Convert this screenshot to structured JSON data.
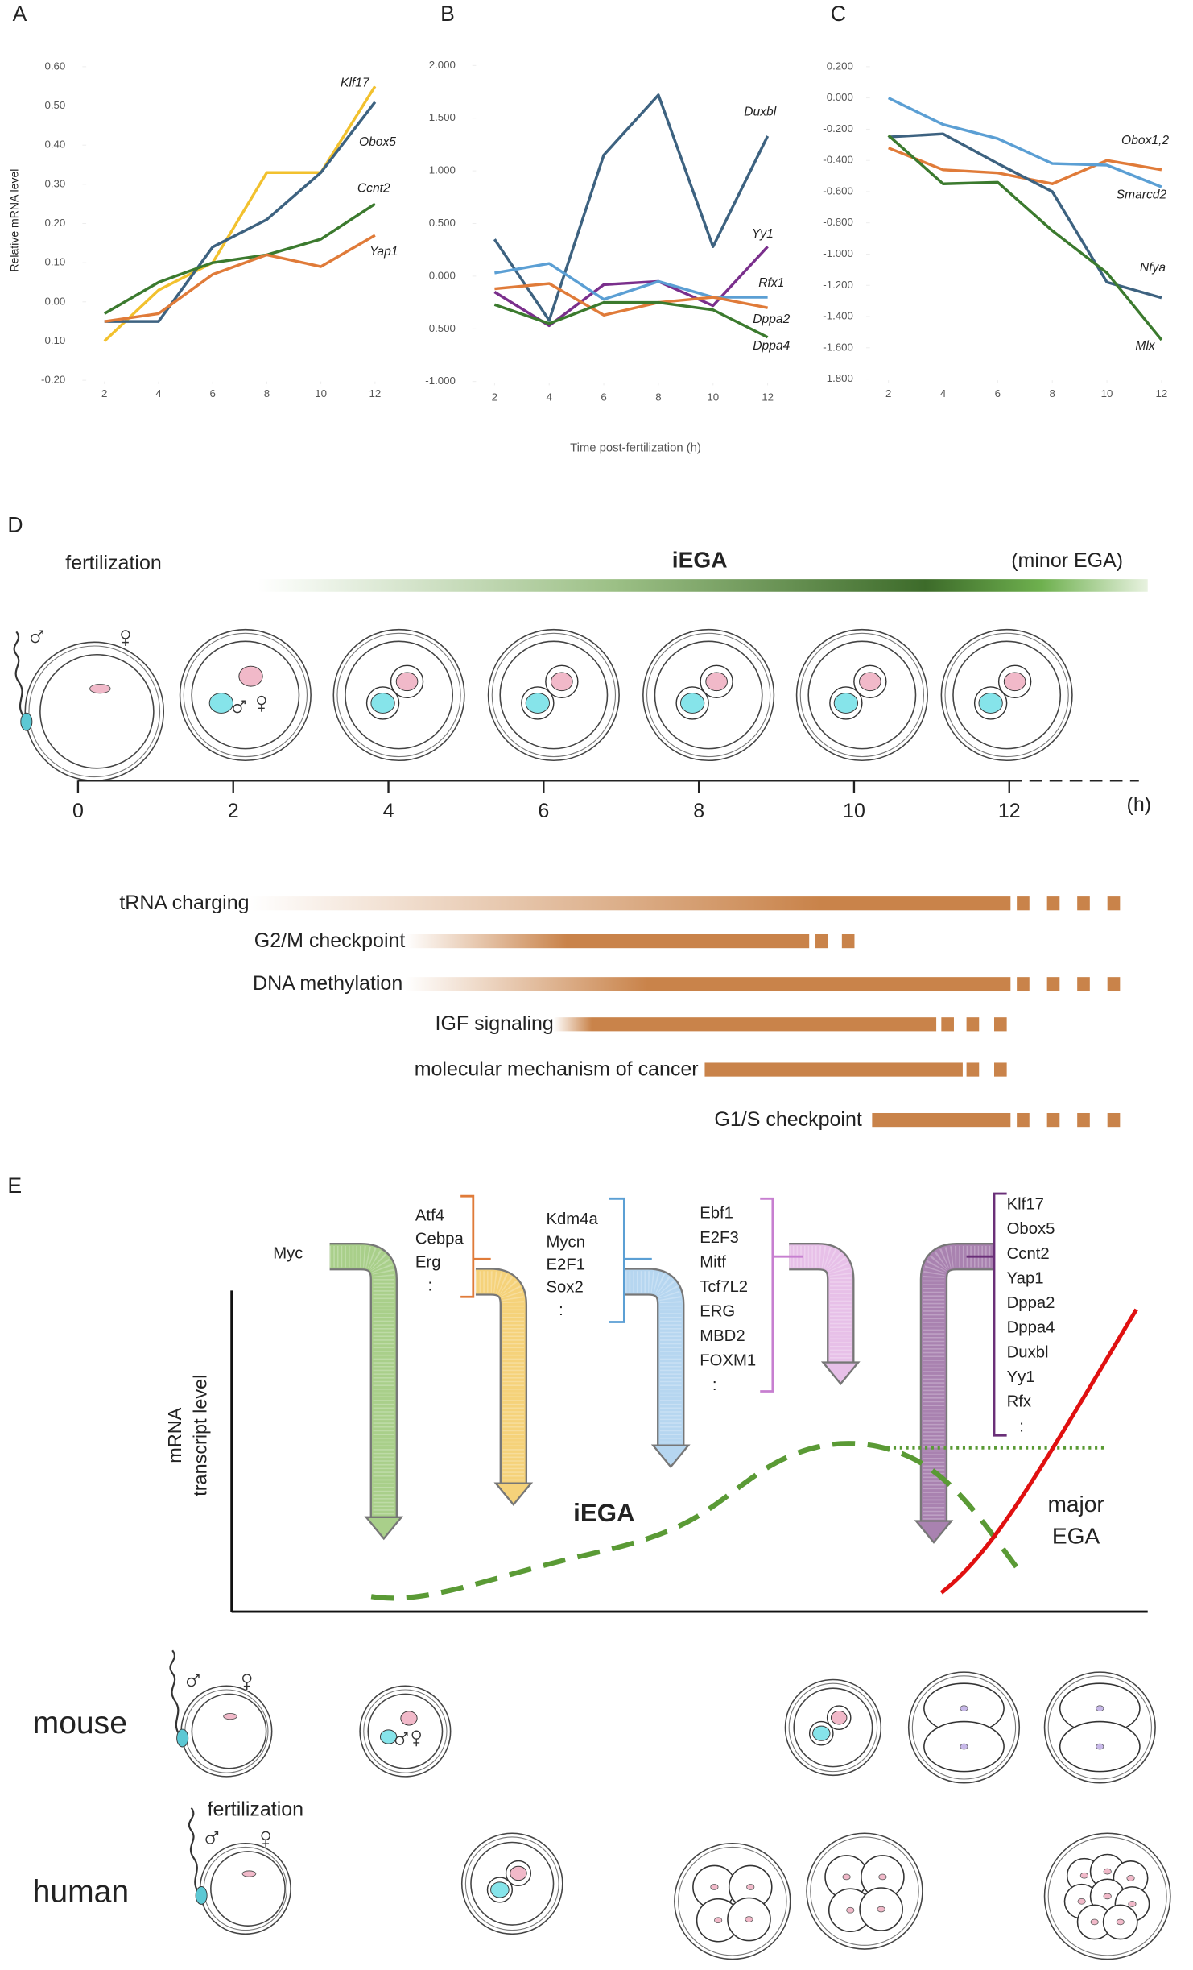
{
  "chart_data": [
    {
      "type": "line",
      "label": "A",
      "ylabel": "Relative mRNA level",
      "x": [
        2,
        4,
        6,
        8,
        10,
        12
      ],
      "xlim": [
        1,
        13
      ],
      "xticks": [
        2,
        4,
        6,
        8,
        10,
        12
      ],
      "ylim": [
        -0.2,
        0.6
      ],
      "yticks": [
        {
          "value": 0.6,
          "label": "0.60"
        },
        {
          "value": 0.5,
          "label": "0.50"
        },
        {
          "value": 0.4,
          "label": "0.40"
        },
        {
          "value": 0.3,
          "label": "0.30"
        },
        {
          "value": 0.2,
          "label": "0.20"
        },
        {
          "value": 0.1,
          "label": "0.10"
        },
        {
          "value": 0,
          "label": "0.00"
        },
        {
          "value": -0.1,
          "label": "-0.10"
        },
        {
          "value": -0.2,
          "label": "-0.20"
        }
      ],
      "grid": false,
      "series": [
        {
          "name": "Klf17",
          "color": "#f2c12e",
          "values": [
            -0.1,
            0.03,
            0.1,
            0.33,
            0.33,
            0.55
          ]
        },
        {
          "name": "Obox5",
          "color": "#3d6280",
          "values": [
            -0.05,
            -0.05,
            0.14,
            0.21,
            0.33,
            0.51
          ]
        },
        {
          "name": "Ccnt2",
          "color": "#3b7a2e",
          "values": [
            -0.03,
            0.05,
            0.1,
            0.12,
            0.16,
            0.25
          ]
        },
        {
          "name": "Yap1",
          "color": "#e07b39",
          "values": [
            -0.05,
            -0.03,
            0.07,
            0.12,
            0.09,
            0.17
          ]
        }
      ]
    },
    {
      "type": "line",
      "label": "B",
      "xlabel": "Time post-fertilization (h)",
      "x": [
        2,
        4,
        6,
        8,
        10,
        12
      ],
      "xlim": [
        1,
        13
      ],
      "xticks": [
        2,
        4,
        6,
        8,
        10,
        12
      ],
      "ylim": [
        -1,
        2
      ],
      "yticks": [
        {
          "value": 2,
          "label": "2.000"
        },
        {
          "value": 1.5,
          "label": "1.500"
        },
        {
          "value": 1,
          "label": "1.000"
        },
        {
          "value": 0.5,
          "label": "0.500"
        },
        {
          "value": 0,
          "label": "0.000"
        },
        {
          "value": -0.5,
          "label": "-0.500"
        },
        {
          "value": -1,
          "label": "-1.000"
        }
      ],
      "grid": false,
      "series": [
        {
          "name": "Duxbl",
          "color": "#3d6280",
          "values": [
            0.35,
            -0.42,
            1.15,
            1.72,
            0.28,
            1.33
          ]
        },
        {
          "name": "Yy1",
          "color": "#7a2f8c",
          "values": [
            -0.15,
            -0.47,
            -0.08,
            -0.05,
            -0.28,
            0.28
          ]
        },
        {
          "name": "Rfx1",
          "color": "#5b9fd4",
          "values": [
            0.03,
            0.12,
            -0.22,
            -0.05,
            -0.2,
            -0.2
          ]
        },
        {
          "name": "Dppa2",
          "color": "#e07b39",
          "values": [
            -0.12,
            -0.07,
            -0.37,
            -0.25,
            -0.2,
            -0.3
          ]
        },
        {
          "name": "Dppa4",
          "color": "#3b7a2e",
          "values": [
            -0.27,
            -0.45,
            -0.25,
            -0.25,
            -0.32,
            -0.58
          ]
        }
      ]
    },
    {
      "type": "line",
      "label": "C",
      "x": [
        2,
        4,
        6,
        8,
        10,
        12
      ],
      "xlim": [
        1,
        13
      ],
      "xticks": [
        2,
        4,
        6,
        8,
        10,
        12
      ],
      "ylim": [
        -1.8,
        0.2
      ],
      "yticks": [
        {
          "value": 0.2,
          "label": "0.200"
        },
        {
          "value": 0,
          "label": "0.000"
        },
        {
          "value": -0.2,
          "label": "-0.200"
        },
        {
          "value": -0.4,
          "label": "-0.400"
        },
        {
          "value": -0.6,
          "label": "-0.600"
        },
        {
          "value": -0.8,
          "label": "-0.800"
        },
        {
          "value": -1,
          "label": "-1.000"
        },
        {
          "value": -1.2,
          "label": "-1.200"
        },
        {
          "value": -1.4,
          "label": "-1.400"
        },
        {
          "value": -1.6,
          "label": "-1.600"
        },
        {
          "value": -1.8,
          "label": "-1.800"
        }
      ],
      "grid": false,
      "series": [
        {
          "name": "Obox1,2",
          "color": "#e07b39",
          "values": [
            -0.32,
            -0.46,
            -0.48,
            -0.55,
            -0.4,
            -0.46
          ]
        },
        {
          "name": "Smarcd2",
          "color": "#5b9fd4",
          "values": [
            0.0,
            -0.17,
            -0.26,
            -0.42,
            -0.43,
            -0.57
          ]
        },
        {
          "name": "Nfya",
          "color": "#3d6280",
          "values": [
            -0.25,
            -0.23,
            -0.42,
            -0.6,
            -1.18,
            -1.28
          ]
        },
        {
          "name": "Mlx",
          "color": "#3b7a2e",
          "values": [
            -0.24,
            -0.55,
            -0.54,
            -0.85,
            -1.12,
            -1.55
          ]
        }
      ]
    }
  ],
  "panel_d": {
    "label": "D",
    "fertilization": "fertilization",
    "iega": "iEGA",
    "minor_ega": "(minor EGA)",
    "time_ticks": [
      0,
      2,
      4,
      6,
      8,
      10,
      12
    ],
    "time_unit": "(h)",
    "pathways": [
      "tRNA charging",
      "G2/M checkpoint",
      "DNA methylation",
      "IGF signaling",
      "molecular mechanism of cancer",
      "G1/S checkpoint"
    ]
  },
  "panel_e": {
    "label": "E",
    "gene_groups": [
      [
        "Myc"
      ],
      [
        "Atf4",
        "Cebpa",
        "Erg",
        ":"
      ],
      [
        "Kdm4a",
        "Mycn",
        "E2F1",
        "Sox2",
        ":"
      ],
      [
        "Ebf1",
        "E2F3",
        "Mitf",
        "Tcf7L2",
        "ERG",
        "MBD2",
        "FOXM1",
        ":"
      ],
      [
        "Klf17",
        "Obox5",
        "Ccnt2",
        "Yap1",
        "Dppa2",
        "Dppa4",
        "Duxbl",
        "Yy1",
        "Rfx",
        ":"
      ]
    ],
    "y_axis_label": [
      "mRNA",
      "transcript level"
    ],
    "iega": "iEGA",
    "major_ega": [
      "major",
      "EGA"
    ],
    "species": [
      "mouse",
      "human"
    ],
    "fertilization": "fertilization"
  }
}
